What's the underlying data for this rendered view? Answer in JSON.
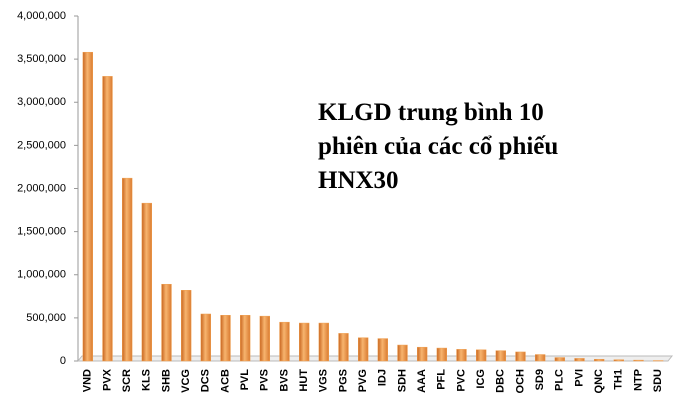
{
  "chart_data": {
    "type": "bar",
    "title": [
      "KLGD trung bình 10",
      "phiên của các cổ phiếu",
      "HNX30"
    ],
    "categories": [
      "VND",
      "PVX",
      "SCR",
      "KLS",
      "SHB",
      "VCG",
      "DCS",
      "ACB",
      "PVL",
      "PVS",
      "BVS",
      "HUT",
      "VGS",
      "PGS",
      "PVG",
      "IDJ",
      "SDH",
      "AAA",
      "PFL",
      "PVC",
      "ICG",
      "DBC",
      "OCH",
      "SD9",
      "PLC",
      "PVI",
      "QNC",
      "TH1",
      "NTP",
      "SDU"
    ],
    "values": [
      3580000,
      3300000,
      2120000,
      1830000,
      890000,
      820000,
      545000,
      530000,
      530000,
      520000,
      450000,
      440000,
      440000,
      320000,
      270000,
      260000,
      185000,
      160000,
      150000,
      135000,
      130000,
      120000,
      105000,
      75000,
      40000,
      30000,
      20000,
      15000,
      10000,
      5000
    ],
    "color": "#f0a050",
    "ylim": [
      0,
      4000000
    ],
    "yticks": [
      0,
      {
        "value": 500000,
        "label": "500,000"
      },
      {
        "value": 1000000,
        "label": "1,000,000"
      },
      {
        "value": 1500000,
        "label": "1,500,000"
      },
      {
        "value": 2000000,
        "label": "2,000,000"
      },
      {
        "value": 2500000,
        "label": "2,500,000"
      },
      {
        "value": 3000000,
        "label": "3,000,000"
      },
      {
        "value": 3500000,
        "label": "3,500,000"
      },
      {
        "value": 4000000,
        "label": "4,000,000"
      }
    ],
    "grid": false
  }
}
